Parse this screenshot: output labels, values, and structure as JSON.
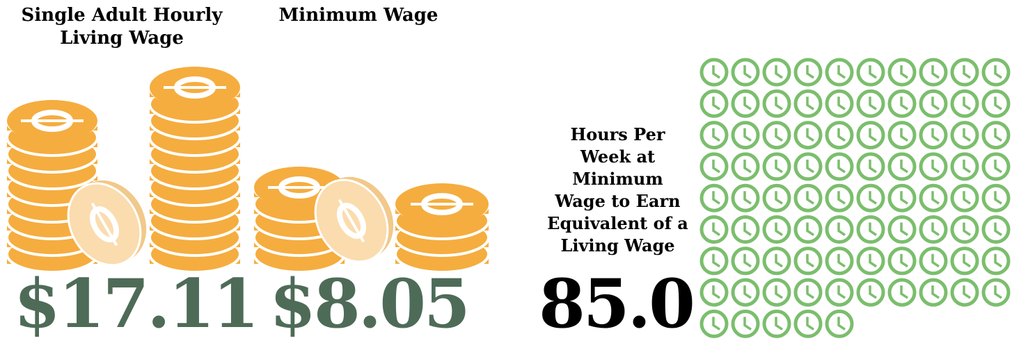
{
  "living_wage": {
    "caption": "Single Adult Hourly Living Wage",
    "amount": "$17.11"
  },
  "minimum_wage": {
    "caption": "Minimum Wage",
    "amount": "$8.05"
  },
  "hours": {
    "caption": "Hours Per Week at Minimum Wage to Earn Equivalent of a Living Wage",
    "value": 85,
    "label": "85.0"
  }
}
